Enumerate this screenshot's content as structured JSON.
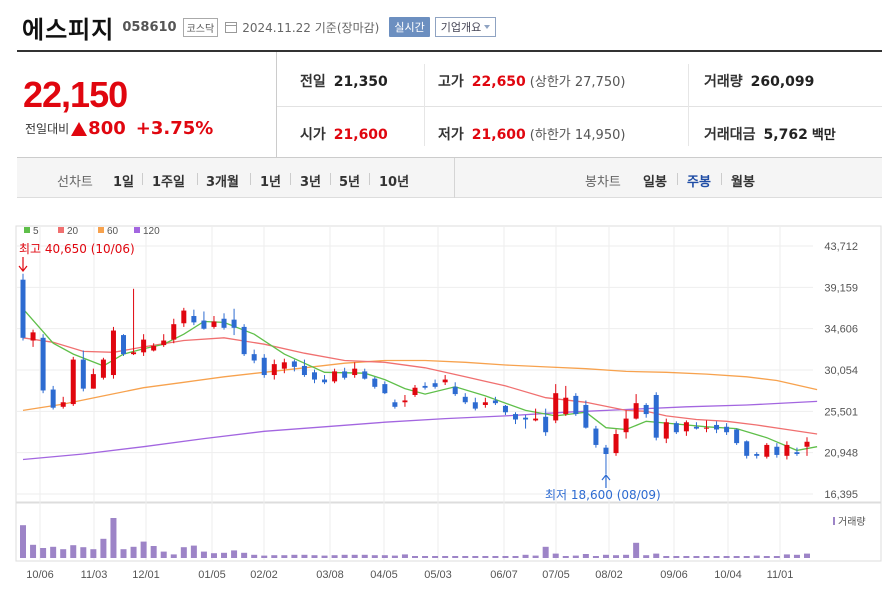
{
  "header": {
    "name": "에스피지",
    "code": "058610",
    "market": "코스닥",
    "date": "2024.11.22",
    "basis": "기준(장마감)",
    "realtime": "실시간",
    "company_info": "기업개요"
  },
  "quote": {
    "price": "22,150",
    "change_label": "전일대비",
    "change_value": "800",
    "change_pct": "+3.75%",
    "prev_label": "전일",
    "prev": "21,350",
    "high_label": "고가",
    "high": "22,650",
    "upper_limit": "(상한가 27,750)",
    "volume_label": "거래량",
    "volume": "260,099",
    "open_label": "시가",
    "open": "21,600",
    "low_label": "저가",
    "low": "21,600",
    "lower_limit": "(하한가 14,950)",
    "amount_label": "거래대금",
    "amount": "5,762",
    "amount_unit": "백만"
  },
  "toolbar": {
    "line_chart": "선차트",
    "periods": [
      "1일",
      "1주일",
      "3개월",
      "1년",
      "3년",
      "5년",
      "10년"
    ],
    "candle_chart": "봉차트",
    "candles": [
      "일봉",
      "주봉",
      "월봉"
    ],
    "active_candle": "주봉"
  },
  "colors": {
    "up": "#e0060f",
    "down": "#2d6bd1",
    "ma5": "#5fbf4a",
    "ma20": "#f07070",
    "ma60": "#f7a24e",
    "ma120": "#a366e0",
    "volume": "#9d84c7"
  },
  "chart_data": {
    "type": "candlestick",
    "legend": [
      {
        "name": "5",
        "color": "#5fbf4a"
      },
      {
        "name": "20",
        "color": "#f07070"
      },
      {
        "name": "60",
        "color": "#f7a24e"
      },
      {
        "name": "120",
        "color": "#a366e0"
      }
    ],
    "y_ticks": [
      "43,712",
      "39,159",
      "34,606",
      "30,054",
      "25,501",
      "20,948",
      "16,395"
    ],
    "ylim": [
      16395,
      43712
    ],
    "x_ticks": [
      "10/06",
      "11/03",
      "12/01",
      "01/05",
      "02/02",
      "03/08",
      "04/05",
      "05/03",
      "06/07",
      "07/05",
      "08/02",
      "09/06",
      "10/04",
      "11/01"
    ],
    "high_annotation": "최고 40,650 (10/06)",
    "low_annotation": "최저 18,600 (08/09)",
    "volume_label": "거래량",
    "candles": [
      [
        40000,
        33600,
        40650,
        33300
      ],
      [
        33300,
        34200,
        34500,
        32600
      ],
      [
        33600,
        27800,
        34000,
        27500
      ],
      [
        27900,
        25900,
        28300,
        25700
      ],
      [
        26000,
        26500,
        27100,
        25800
      ],
      [
        26300,
        31200,
        31500,
        26100
      ],
      [
        31200,
        28000,
        32200,
        27700
      ],
      [
        28000,
        29600,
        30200,
        28000
      ],
      [
        29200,
        31200,
        31400,
        29000
      ],
      [
        29500,
        34400,
        34800,
        29100
      ],
      [
        33900,
        31800,
        34000,
        31600
      ],
      [
        31800,
        32000,
        39000,
        31700
      ],
      [
        32000,
        33400,
        34000,
        31600
      ],
      [
        32200,
        32700,
        33000,
        32100
      ],
      [
        32800,
        33300,
        34000,
        32600
      ],
      [
        33400,
        35100,
        35700,
        33000
      ],
      [
        35200,
        36600,
        36900,
        34800
      ],
      [
        36000,
        35300,
        36700,
        35000
      ],
      [
        35500,
        34600,
        36500,
        34500
      ],
      [
        34800,
        35400,
        36000,
        34600
      ],
      [
        35700,
        34700,
        36300,
        34500
      ],
      [
        35600,
        34700,
        36800,
        33900
      ],
      [
        34800,
        31800,
        35100,
        31600
      ],
      [
        31800,
        31100,
        32300,
        30800
      ],
      [
        31400,
        29500,
        31800,
        29200
      ],
      [
        29500,
        30700,
        31200,
        29000
      ],
      [
        30200,
        30900,
        31300,
        29700
      ],
      [
        31000,
        30400,
        31200,
        29900
      ],
      [
        30500,
        29500,
        31200,
        29300
      ],
      [
        29800,
        29000,
        30100,
        28600
      ],
      [
        29000,
        28700,
        29500,
        28500
      ],
      [
        28800,
        29900,
        30200,
        28600
      ],
      [
        29900,
        29200,
        30300,
        29000
      ],
      [
        29500,
        30200,
        30900,
        29200
      ],
      [
        29900,
        29100,
        30200,
        29000
      ],
      [
        29100,
        28200,
        29300,
        28000
      ],
      [
        28500,
        27500,
        28800,
        27400
      ],
      [
        26500,
        26000,
        26800,
        25800
      ],
      [
        26500,
        26700,
        27300,
        26000
      ],
      [
        27300,
        28100,
        28400,
        27100
      ],
      [
        28300,
        28100,
        28700,
        27900
      ],
      [
        28600,
        28200,
        29000,
        28000
      ],
      [
        28700,
        29000,
        29500,
        28400
      ],
      [
        28200,
        27400,
        28700,
        27200
      ],
      [
        27100,
        26500,
        27500,
        26300
      ],
      [
        26500,
        25800,
        27000,
        25600
      ],
      [
        26200,
        26500,
        27000,
        25900
      ],
      [
        26700,
        26400,
        27100,
        26200
      ],
      [
        26100,
        25400,
        26200,
        25100
      ],
      [
        25200,
        24600,
        25400,
        24100
      ],
      [
        24800,
        24600,
        25100,
        23600
      ],
      [
        24500,
        24700,
        25800,
        24400
      ],
      [
        24900,
        23200,
        25800,
        22800
      ],
      [
        24500,
        27500,
        28500,
        24200
      ],
      [
        25200,
        27000,
        28300,
        25000
      ],
      [
        27200,
        25200,
        27500,
        25000
      ],
      [
        26200,
        23700,
        26700,
        23600
      ],
      [
        23600,
        21800,
        23900,
        21500
      ],
      [
        21500,
        20800,
        21800,
        18600
      ],
      [
        20900,
        23000,
        23500,
        20600
      ],
      [
        23200,
        24700,
        25600,
        22500
      ],
      [
        24700,
        26400,
        27400,
        24600
      ],
      [
        26200,
        25200,
        26400,
        24800
      ],
      [
        27300,
        22600,
        27600,
        22300
      ],
      [
        22500,
        24300,
        24700,
        22000
      ],
      [
        24200,
        23200,
        24400,
        23000
      ],
      [
        23300,
        24300,
        24500,
        22800
      ],
      [
        23800,
        23600,
        24300,
        23500
      ],
      [
        23600,
        23700,
        24500,
        23200
      ],
      [
        24000,
        23500,
        24400,
        23100
      ],
      [
        23800,
        23200,
        24200,
        22900
      ],
      [
        23500,
        22000,
        23600,
        21800
      ],
      [
        22200,
        20600,
        22300,
        20300
      ],
      [
        20800,
        20600,
        21000,
        20300
      ],
      [
        20500,
        21800,
        22000,
        20300
      ],
      [
        21600,
        20700,
        22000,
        20400
      ],
      [
        20600,
        21800,
        22200,
        20200
      ],
      [
        21000,
        20800,
        21500,
        20600
      ],
      [
        21600,
        22150,
        22650,
        20600
      ]
    ],
    "ma5": [
      [
        0,
        36800
      ],
      [
        3,
        33000
      ],
      [
        5,
        31800
      ],
      [
        8,
        30500
      ],
      [
        10,
        31800
      ],
      [
        12,
        32400
      ],
      [
        14,
        32900
      ],
      [
        16,
        34000
      ],
      [
        18,
        35400
      ],
      [
        20,
        35300
      ],
      [
        23,
        34000
      ],
      [
        26,
        31800
      ],
      [
        30,
        29800
      ],
      [
        34,
        29700
      ],
      [
        36,
        29000
      ],
      [
        38,
        28000
      ],
      [
        40,
        27400
      ],
      [
        43,
        28200
      ],
      [
        46,
        27200
      ],
      [
        50,
        25600
      ],
      [
        53,
        25000
      ],
      [
        56,
        25400
      ],
      [
        58,
        23700
      ],
      [
        60,
        23500
      ],
      [
        62,
        24400
      ],
      [
        65,
        24100
      ],
      [
        68,
        23800
      ],
      [
        71,
        23600
      ],
      [
        74,
        22600
      ],
      [
        77,
        21200
      ],
      [
        79,
        21600
      ]
    ],
    "ma20": [
      [
        0,
        33600
      ],
      [
        3,
        33100
      ],
      [
        6,
        32100
      ],
      [
        9,
        32000
      ],
      [
        12,
        32600
      ],
      [
        16,
        33300
      ],
      [
        20,
        33600
      ],
      [
        24,
        32900
      ],
      [
        28,
        31900
      ],
      [
        32,
        31100
      ],
      [
        36,
        30900
      ],
      [
        40,
        30300
      ],
      [
        44,
        29300
      ],
      [
        48,
        28300
      ],
      [
        52,
        27000
      ],
      [
        56,
        26500
      ],
      [
        60,
        25600
      ],
      [
        62,
        25500
      ],
      [
        64,
        25000
      ],
      [
        67,
        24600
      ],
      [
        70,
        24400
      ],
      [
        73,
        24000
      ],
      [
        76,
        23500
      ],
      [
        79,
        23000
      ]
    ],
    "ma60": [
      [
        0,
        25600
      ],
      [
        4,
        26300
      ],
      [
        8,
        27200
      ],
      [
        12,
        28100
      ],
      [
        16,
        28700
      ],
      [
        20,
        29300
      ],
      [
        24,
        29800
      ],
      [
        28,
        30300
      ],
      [
        32,
        30800
      ],
      [
        36,
        31100
      ],
      [
        40,
        31100
      ],
      [
        44,
        30900
      ],
      [
        48,
        30600
      ],
      [
        52,
        30400
      ],
      [
        56,
        30200
      ],
      [
        60,
        29900
      ],
      [
        64,
        29800
      ],
      [
        68,
        29600
      ],
      [
        72,
        29300
      ],
      [
        75,
        28900
      ],
      [
        79,
        27900
      ]
    ],
    "ma120": [
      [
        0,
        20200
      ],
      [
        6,
        20800
      ],
      [
        12,
        21600
      ],
      [
        18,
        22500
      ],
      [
        24,
        23300
      ],
      [
        30,
        23800
      ],
      [
        36,
        24300
      ],
      [
        42,
        24700
      ],
      [
        48,
        25000
      ],
      [
        54,
        25400
      ],
      [
        60,
        25700
      ],
      [
        66,
        26000
      ],
      [
        72,
        26200
      ],
      [
        79,
        26600
      ]
    ],
    "volume_rel": [
      0.82,
      0.33,
      0.25,
      0.28,
      0.22,
      0.32,
      0.27,
      0.22,
      0.48,
      1.0,
      0.22,
      0.28,
      0.41,
      0.3,
      0.16,
      0.09,
      0.27,
      0.31,
      0.16,
      0.12,
      0.13,
      0.19,
      0.13,
      0.08,
      0.06,
      0.07,
      0.07,
      0.08,
      0.08,
      0.07,
      0.06,
      0.07,
      0.08,
      0.08,
      0.08,
      0.07,
      0.07,
      0.06,
      0.09,
      0.05,
      0.05,
      0.05,
      0.05,
      0.05,
      0.05,
      0.05,
      0.05,
      0.05,
      0.05,
      0.05,
      0.08,
      0.06,
      0.28,
      0.11,
      0.05,
      0.06,
      0.1,
      0.05,
      0.08,
      0.07,
      0.08,
      0.38,
      0.07,
      0.11,
      0.05,
      0.05,
      0.05,
      0.05,
      0.05,
      0.05,
      0.05,
      0.05,
      0.05,
      0.06,
      0.05,
      0.05,
      0.09,
      0.08,
      0.11
    ]
  }
}
